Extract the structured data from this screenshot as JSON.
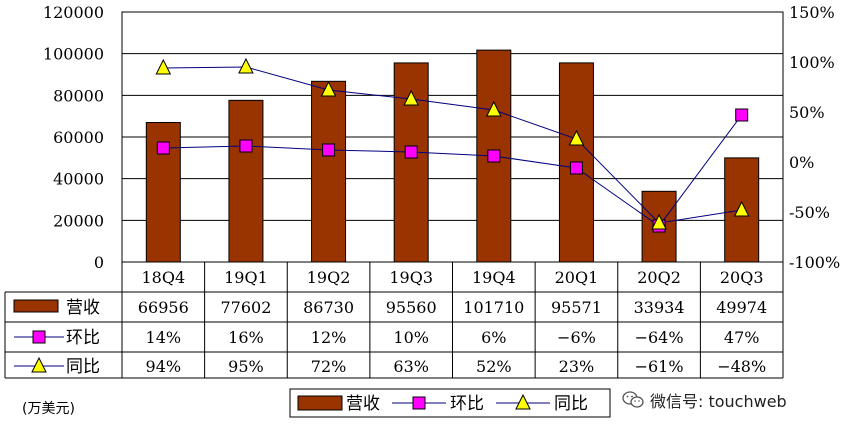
{
  "chart_data": {
    "type": "bar",
    "categories": [
      "18Q4",
      "19Q1",
      "19Q2",
      "19Q3",
      "19Q4",
      "20Q1",
      "20Q2",
      "20Q3"
    ],
    "series": [
      {
        "name": "营收",
        "kind": "bar",
        "axis": "left",
        "color": "#993300",
        "values": [
          66956,
          77602,
          86730,
          95560,
          101710,
          95571,
          33934,
          49974
        ],
        "labels": [
          "66956",
          "77602",
          "86730",
          "95560",
          "101710",
          "95571",
          "33934",
          "49974"
        ]
      },
      {
        "name": "环比",
        "kind": "line",
        "axis": "right",
        "marker": "square",
        "color": "#ff00ff",
        "values": [
          14,
          16,
          12,
          10,
          6,
          -6,
          -64,
          47
        ],
        "labels": [
          "14%",
          "16%",
          "12%",
          "10%",
          "6%",
          "−6%",
          "−64%",
          "47%"
        ]
      },
      {
        "name": "同比",
        "kind": "line",
        "axis": "right",
        "marker": "triangle",
        "color": "#ffff00",
        "values": [
          94,
          95,
          72,
          63,
          52,
          23,
          -61,
          -48
        ],
        "labels": [
          "94%",
          "95%",
          "72%",
          "63%",
          "52%",
          "23%",
          "−61%",
          "−48%"
        ]
      }
    ],
    "y_left": {
      "min": 0,
      "max": 120000,
      "step": 20000,
      "ticks": [
        "0",
        "20000",
        "40000",
        "60000",
        "80000",
        "100000",
        "120000"
      ]
    },
    "y_right": {
      "min": -100,
      "max": 150,
      "step": 50,
      "ticks": [
        "-100%",
        "-50%",
        "0%",
        "50%",
        "100%",
        "150%"
      ]
    },
    "grid": true,
    "data_table": true,
    "legend_position": "bottom-right",
    "line_color": "#000080"
  },
  "unit_note": "(万美元)",
  "watermark": "微信号: touchweb",
  "colors": {
    "bar": "#993300",
    "line": "#000080",
    "square": "#ff00ff",
    "triangle": "#ffff00"
  }
}
